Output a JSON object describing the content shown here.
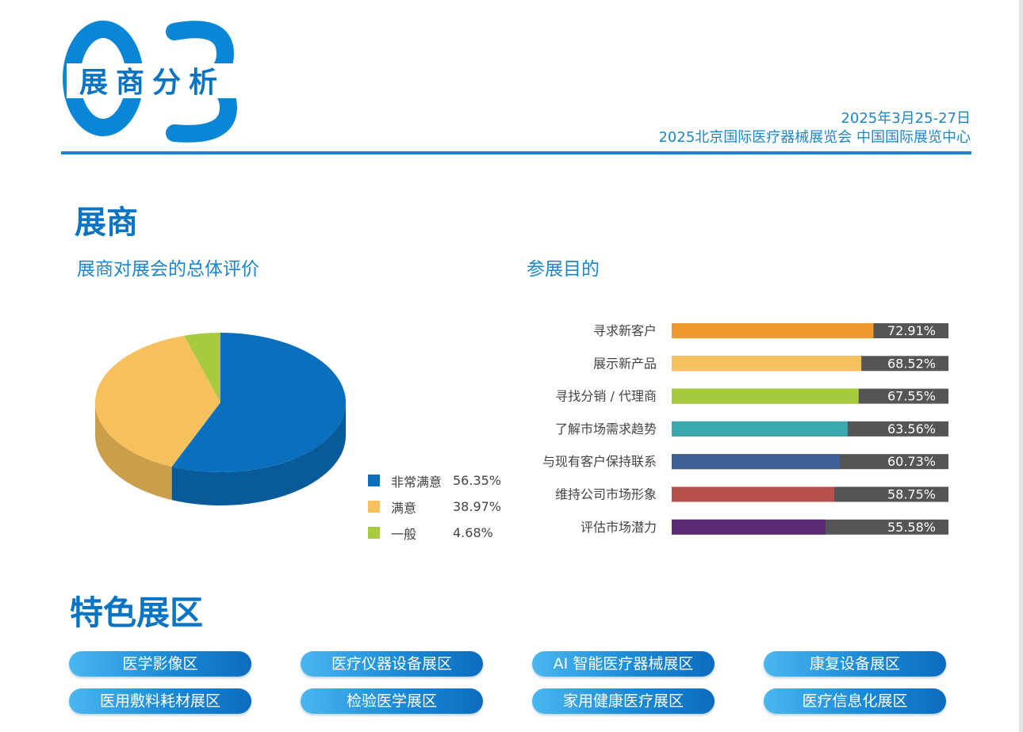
{
  "logo": {
    "number": "03",
    "title": "展商分析"
  },
  "header": {
    "date": "2025年3月25-27日",
    "event": "2025北京国际医疗器械展览会  中国国际展览中心"
  },
  "section_exhibitors": {
    "title": "展商"
  },
  "colors": {
    "accent": "#1a86cf",
    "bar_remainder": "#555555"
  },
  "chart_data": [
    {
      "type": "pie",
      "title": "展商对展会的总体评价",
      "slices": [
        {
          "label": "非常满意",
          "value": 56.35,
          "value_label": "56.35%",
          "color": "#0a6fbd"
        },
        {
          "label": "满意",
          "value": 38.97,
          "value_label": "38.97%",
          "color": "#f6c15c"
        },
        {
          "label": "一般",
          "value": 4.68,
          "value_label": "4.68%",
          "color": "#a8cb3e"
        }
      ],
      "style": "3d",
      "legend": "right-bottom"
    },
    {
      "type": "bar",
      "orientation": "horizontal",
      "title": "参展目的",
      "categories": [
        "寻求新客户",
        "展示新产品",
        "寻找分销 / 代理商",
        "了解市场需求趋势",
        "与现有客户保持联系",
        "维持公司市场形象",
        "评估市场潜力"
      ],
      "values": [
        72.91,
        68.52,
        67.55,
        63.56,
        60.73,
        58.75,
        55.58
      ],
      "value_labels": [
        "72.91%",
        "68.52%",
        "67.55%",
        "63.56%",
        "60.73%",
        "58.75%",
        "55.58%"
      ],
      "colors": [
        "#ee9a2e",
        "#f6c15c",
        "#a8cb3e",
        "#3aa9ad",
        "#3f6096",
        "#b8514c",
        "#5e2a74"
      ],
      "xlim": [
        0,
        100
      ],
      "grid": false
    }
  ],
  "section_zones": {
    "title": "特色展区",
    "zones": [
      "医学影像区",
      "医疗仪器设备展区",
      "AI 智能医疗器械展区",
      "康复设备展区",
      "医用敷料耗材展区",
      "检验医学展区",
      "家用健康医疗展区",
      "医疗信息化展区"
    ]
  }
}
